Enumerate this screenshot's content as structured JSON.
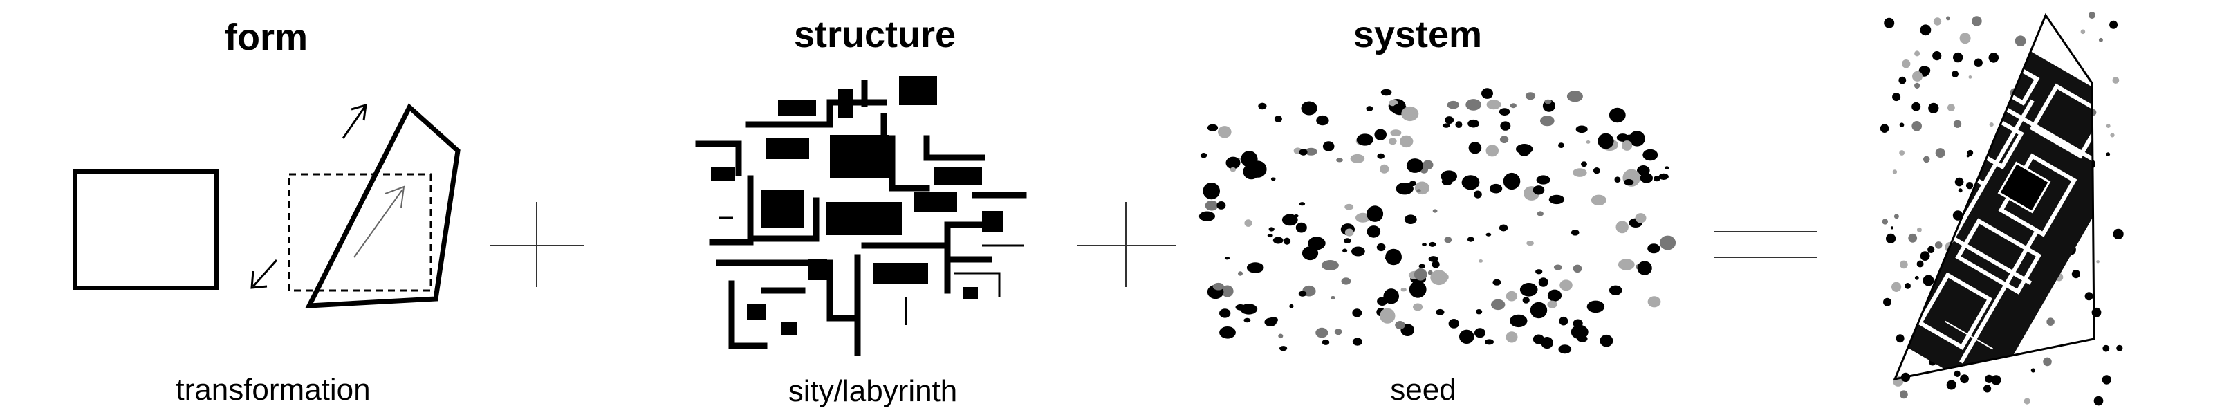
{
  "diagram": {
    "panels": [
      {
        "title": "form",
        "caption": "transformation"
      },
      {
        "title": "structure",
        "caption": "sity/labyrinth"
      },
      {
        "title": "system",
        "caption": "seed"
      },
      {
        "title": "",
        "caption": ""
      }
    ],
    "operators": [
      "plus",
      "plus",
      "equals"
    ],
    "colors": {
      "ink": "#000000",
      "grey_dot": "#777777",
      "light_grey_dot": "#aaaaaa",
      "background": "#ffffff"
    }
  }
}
